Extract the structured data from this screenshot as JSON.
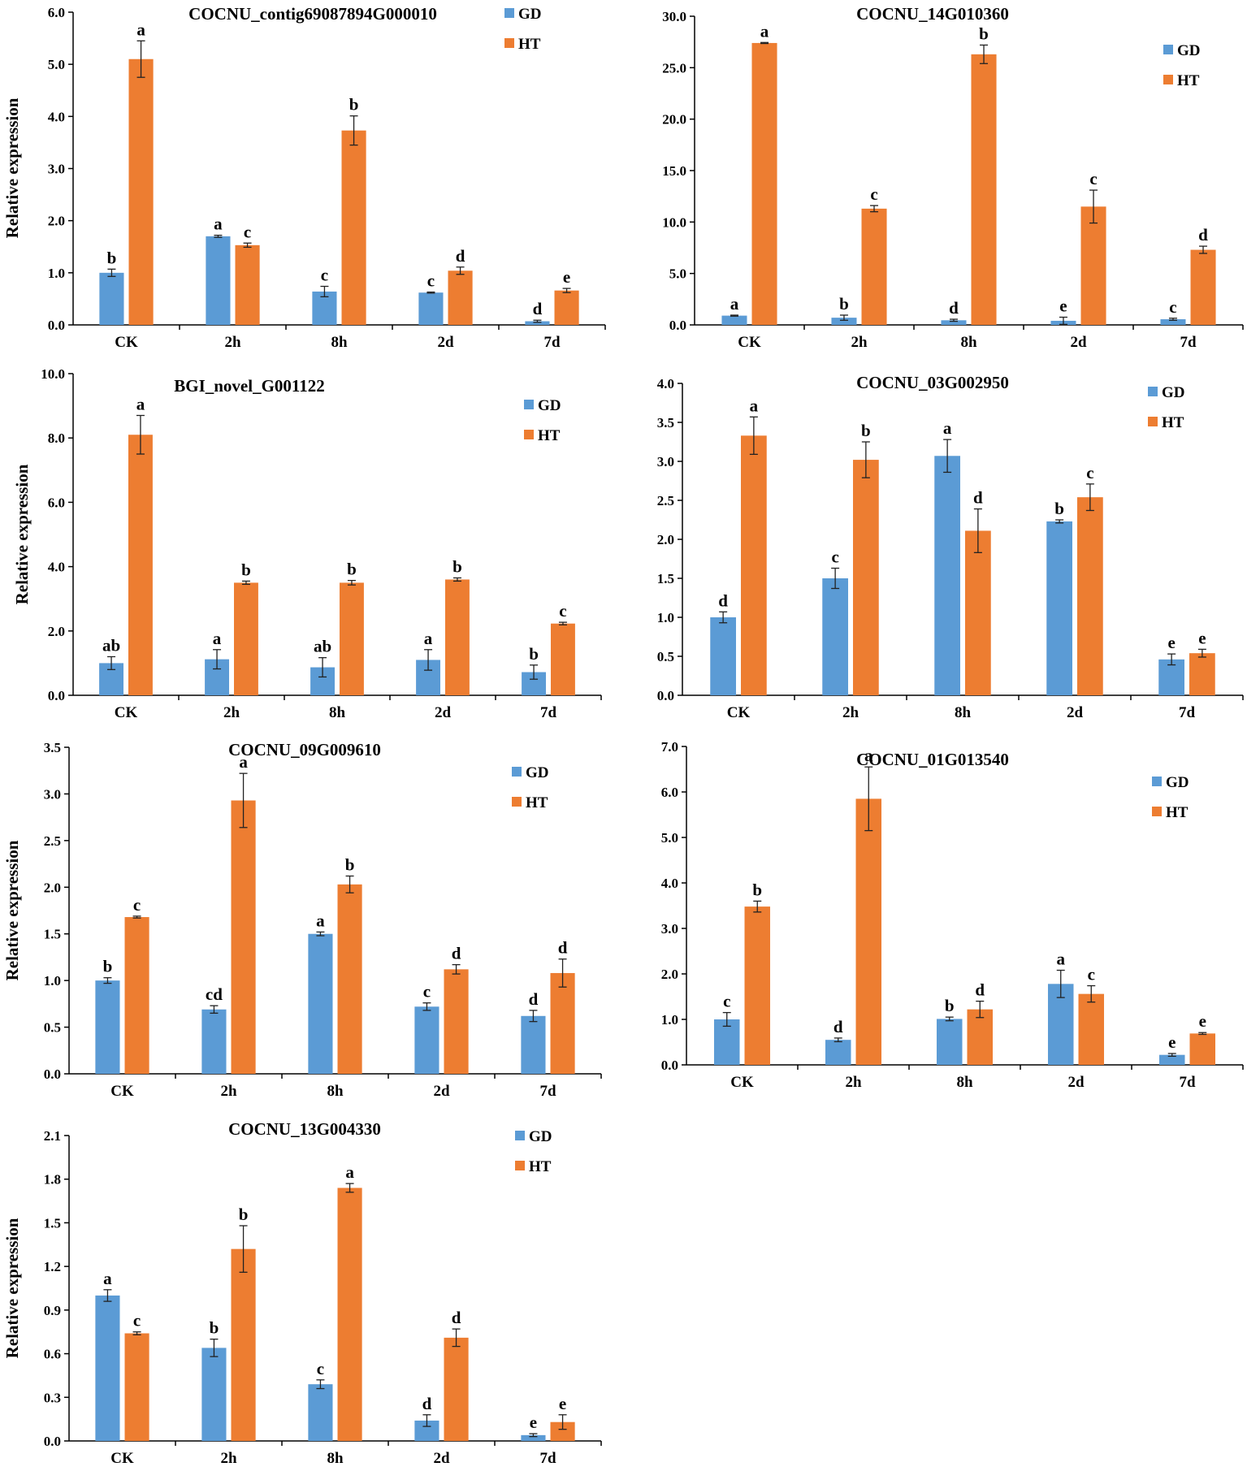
{
  "colors": {
    "gd": "#5B9BD5",
    "ht": "#ED7D31",
    "axis": "#000000",
    "error": "#222222"
  },
  "chart_data": [
    {
      "type": "bar",
      "title": "COCNU_contig69087894G000010",
      "ylabel": "Relative expression",
      "xlabel": "",
      "categories": [
        "CK",
        "2h",
        "8h",
        "2d",
        "7d"
      ],
      "yticks": [
        "0.0",
        "1.0",
        "2.0",
        "3.0",
        "4.0",
        "5.0",
        "6.0"
      ],
      "ylim": [
        0,
        6
      ],
      "legend": "top-right",
      "series": [
        {
          "name": "GD",
          "values": [
            1.0,
            1.7,
            0.64,
            0.62,
            0.07
          ],
          "errors": [
            0.07,
            0.02,
            0.1,
            0.01,
            0.02
          ],
          "labels": [
            "b",
            "a",
            "c",
            "c",
            "d"
          ]
        },
        {
          "name": "HT",
          "values": [
            5.1,
            1.53,
            3.73,
            1.04,
            0.66
          ],
          "errors": [
            0.35,
            0.04,
            0.28,
            0.07,
            0.04
          ],
          "labels": [
            "a",
            "c",
            "b",
            "d",
            "e"
          ]
        }
      ]
    },
    {
      "type": "bar",
      "title": "COCNU_14G010360",
      "ylabel": "",
      "xlabel": "",
      "categories": [
        "CK",
        "2h",
        "8h",
        "2d",
        "7d"
      ],
      "yticks": [
        "0.0",
        "5.0",
        "10.0",
        "15.0",
        "20.0",
        "25.0",
        "30.0"
      ],
      "ylim": [
        0,
        30
      ],
      "legend": "top-right",
      "series": [
        {
          "name": "GD",
          "values": [
            0.9,
            0.7,
            0.45,
            0.4,
            0.55
          ],
          "errors": [
            0.05,
            0.25,
            0.1,
            0.35,
            0.1
          ],
          "labels": [
            "a",
            "b",
            "d",
            "e",
            "c"
          ]
        },
        {
          "name": "HT",
          "values": [
            27.4,
            11.3,
            26.3,
            11.5,
            7.3
          ],
          "errors": [
            0.05,
            0.3,
            0.9,
            1.6,
            0.35
          ],
          "labels": [
            "a",
            "c",
            "b",
            "c",
            "d"
          ]
        }
      ]
    },
    {
      "type": "bar",
      "title": "BGI_novel_G001122",
      "ylabel": "Relative expression",
      "xlabel": "",
      "categories": [
        "CK",
        "2h",
        "8h",
        "2d",
        "7d"
      ],
      "yticks": [
        "0.0",
        "2.0",
        "4.0",
        "6.0",
        "8.0",
        "10.0"
      ],
      "ylim": [
        0,
        10
      ],
      "legend": "top-right",
      "series": [
        {
          "name": "GD",
          "values": [
            1.0,
            1.12,
            0.87,
            1.1,
            0.72
          ],
          "errors": [
            0.2,
            0.3,
            0.3,
            0.32,
            0.22
          ],
          "labels": [
            "ab",
            "a",
            "ab",
            "a",
            "b"
          ]
        },
        {
          "name": "HT",
          "values": [
            8.1,
            3.5,
            3.5,
            3.6,
            2.23
          ],
          "errors": [
            0.6,
            0.05,
            0.07,
            0.05,
            0.04
          ],
          "labels": [
            "a",
            "b",
            "b",
            "b",
            "c"
          ]
        }
      ]
    },
    {
      "type": "bar",
      "title": "COCNU_03G002950",
      "ylabel": "",
      "xlabel": "",
      "categories": [
        "CK",
        "2h",
        "8h",
        "2d",
        "7d"
      ],
      "yticks": [
        "0.0",
        "0.5",
        "1.0",
        "1.5",
        "2.0",
        "2.5",
        "3.0",
        "3.5",
        "4.0"
      ],
      "ylim": [
        0,
        4
      ],
      "legend": "top-right",
      "series": [
        {
          "name": "GD",
          "values": [
            1.0,
            1.5,
            3.07,
            2.23,
            0.46
          ],
          "errors": [
            0.07,
            0.13,
            0.21,
            0.02,
            0.07
          ],
          "labels": [
            "d",
            "c",
            "a",
            "b",
            "e"
          ]
        },
        {
          "name": "HT",
          "values": [
            3.33,
            3.02,
            2.11,
            2.54,
            0.54
          ],
          "errors": [
            0.24,
            0.23,
            0.28,
            0.17,
            0.05
          ],
          "labels": [
            "a",
            "b",
            "d",
            "c",
            "e"
          ]
        }
      ]
    },
    {
      "type": "bar",
      "title": "COCNU_09G009610",
      "ylabel": "Relative expression",
      "xlabel": "",
      "categories": [
        "CK",
        "2h",
        "8h",
        "2d",
        "7d"
      ],
      "yticks": [
        "0.0",
        "0.5",
        "1.0",
        "1.5",
        "2.0",
        "2.5",
        "3.0",
        "3.5"
      ],
      "ylim": [
        0,
        3.5
      ],
      "legend": "top-right",
      "series": [
        {
          "name": "GD",
          "values": [
            1.0,
            0.69,
            1.5,
            0.72,
            0.62
          ],
          "errors": [
            0.03,
            0.04,
            0.02,
            0.04,
            0.06
          ],
          "labels": [
            "b",
            "cd",
            "a",
            "c",
            "d"
          ]
        },
        {
          "name": "HT",
          "values": [
            1.68,
            2.93,
            2.03,
            1.12,
            1.08
          ],
          "errors": [
            0.01,
            0.29,
            0.09,
            0.05,
            0.15
          ],
          "labels": [
            "c",
            "a",
            "b",
            "d",
            "d"
          ]
        }
      ]
    },
    {
      "type": "bar",
      "title": "COCNU_01G013540",
      "ylabel": "",
      "xlabel": "",
      "categories": [
        "CK",
        "2h",
        "8h",
        "2d",
        "7d"
      ],
      "yticks": [
        "0.0",
        "1.0",
        "2.0",
        "3.0",
        "4.0",
        "5.0",
        "6.0",
        "7.0"
      ],
      "ylim": [
        0,
        7
      ],
      "legend": "top-right",
      "series": [
        {
          "name": "GD",
          "values": [
            1.0,
            0.55,
            1.01,
            1.78,
            0.22
          ],
          "errors": [
            0.15,
            0.04,
            0.04,
            0.3,
            0.03
          ],
          "labels": [
            "c",
            "d",
            "b",
            "a",
            "e"
          ]
        },
        {
          "name": "HT",
          "values": [
            3.48,
            5.85,
            1.22,
            1.56,
            0.69
          ],
          "errors": [
            0.12,
            0.7,
            0.18,
            0.18,
            0.02
          ],
          "labels": [
            "b",
            "a",
            "d",
            "c",
            "e"
          ]
        }
      ]
    },
    {
      "type": "bar",
      "title": "COCNU_13G004330",
      "ylabel": "Relative expression",
      "xlabel": "",
      "categories": [
        "CK",
        "2h",
        "8h",
        "2d",
        "7d"
      ],
      "yticks": [
        "0.0",
        "0.3",
        "0.6",
        "0.9",
        "1.2",
        "1.5",
        "1.8",
        "2.1"
      ],
      "ylim": [
        0,
        2.1
      ],
      "legend": "top-right",
      "series": [
        {
          "name": "GD",
          "values": [
            1.0,
            0.64,
            0.39,
            0.14,
            0.04
          ],
          "errors": [
            0.04,
            0.06,
            0.03,
            0.04,
            0.01
          ],
          "labels": [
            "a",
            "b",
            "c",
            "d",
            "e"
          ]
        },
        {
          "name": "HT",
          "values": [
            0.74,
            1.32,
            1.74,
            0.71,
            0.13
          ],
          "errors": [
            0.01,
            0.16,
            0.03,
            0.06,
            0.05
          ],
          "labels": [
            "c",
            "b",
            "a",
            "d",
            "e"
          ]
        }
      ]
    }
  ]
}
